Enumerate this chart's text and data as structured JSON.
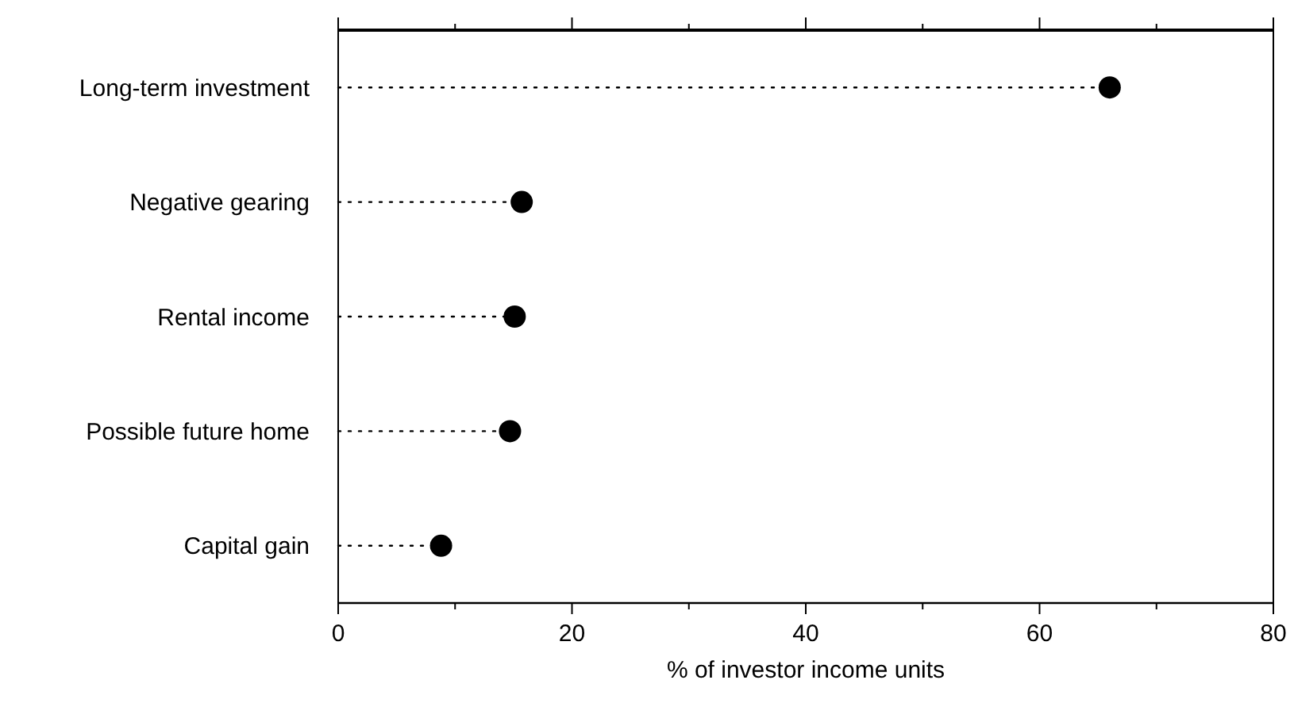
{
  "chart_data": {
    "type": "lollipop",
    "orientation": "horizontal",
    "xlabel": "% of investor income units",
    "categories": [
      "Long-term investment",
      "Negative gearing",
      "Rental income",
      "Possible future home",
      "Capital gain"
    ],
    "values": [
      66,
      15.7,
      15.1,
      14.7,
      8.8
    ],
    "color": "#000000",
    "marker": "circle",
    "line_style": "dotted",
    "xlim": [
      0,
      80
    ],
    "xticks": [
      0,
      {
        "value": 10,
        "label": null
      },
      20,
      {
        "value": 30,
        "label": null
      },
      40,
      {
        "value": 50,
        "label": null
      },
      60,
      {
        "value": 70,
        "label": null
      },
      80
    ],
    "grid": false
  }
}
